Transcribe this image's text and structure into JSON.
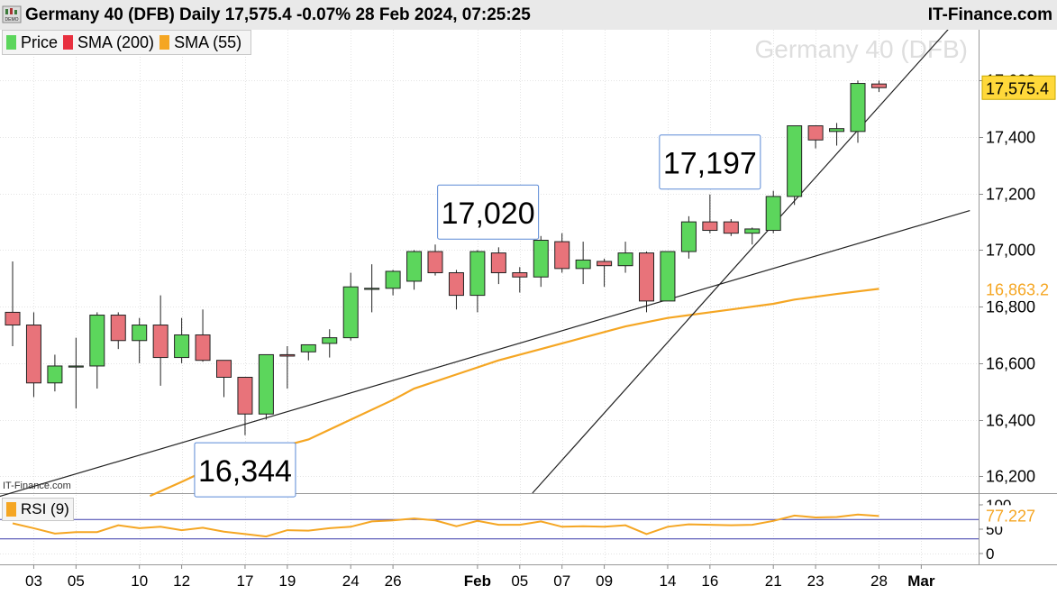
{
  "header": {
    "title": "Germany 40 (DFB) Daily 17,575.4 -0.07% 28 Feb 2024, 07:25:25",
    "brand": "IT-Finance.com",
    "demo_badge": "DEMO"
  },
  "legend": [
    {
      "label": "Price",
      "color": "#5cd65c"
    },
    {
      "label": "SMA (200)",
      "color": "#e8303f"
    },
    {
      "label": "SMA (55)",
      "color": "#f5a623"
    }
  ],
  "watermark": "Germany 40 (DFB)",
  "small_watermark": "IT-Finance.com",
  "colors": {
    "up": "#5cd65c",
    "down": "#e8737a",
    "sma55": "#f5a623",
    "trendline": "#222222",
    "rsi": "#f5a623",
    "rsi_level": "#3a3aaa"
  },
  "chart_data": {
    "type": "candlestick",
    "title": "Germany 40 (DFB) Daily",
    "x_tick_labels": [
      {
        "label": "03",
        "index": 1
      },
      {
        "label": "05",
        "index": 3
      },
      {
        "label": "10",
        "index": 6
      },
      {
        "label": "12",
        "index": 8
      },
      {
        "label": "17",
        "index": 11
      },
      {
        "label": "19",
        "index": 13
      },
      {
        "label": "24",
        "index": 16
      },
      {
        "label": "26",
        "index": 18
      },
      {
        "label": "Feb",
        "index": 22
      },
      {
        "label": "05",
        "index": 24
      },
      {
        "label": "07",
        "index": 26
      },
      {
        "label": "09",
        "index": 28
      },
      {
        "label": "14",
        "index": 31
      },
      {
        "label": "16",
        "index": 33
      },
      {
        "label": "21",
        "index": 36
      },
      {
        "label": "23",
        "index": 38
      },
      {
        "label": "28",
        "index": 41
      },
      {
        "label": "Mar",
        "index": 43
      }
    ],
    "y_ticks": [
      16200,
      16400,
      16600,
      16800,
      17000,
      17200,
      17400,
      17600
    ],
    "y_tick_labels": [
      "16,200",
      "16,400",
      "16,600",
      "16,800",
      "17,000",
      "17,200",
      "17,400",
      "17,600"
    ],
    "ylim": [
      16140,
      17780
    ],
    "candles": [
      {
        "o": 16780,
        "h": 16960,
        "l": 16660,
        "c": 16735
      },
      {
        "o": 16735,
        "h": 16780,
        "l": 16480,
        "c": 16530
      },
      {
        "o": 16530,
        "h": 16630,
        "l": 16500,
        "c": 16590
      },
      {
        "o": 16590,
        "h": 16690,
        "l": 16440,
        "c": 16590
      },
      {
        "o": 16590,
        "h": 16780,
        "l": 16510,
        "c": 16770
      },
      {
        "o": 16770,
        "h": 16780,
        "l": 16650,
        "c": 16680
      },
      {
        "o": 16680,
        "h": 16760,
        "l": 16600,
        "c": 16735
      },
      {
        "o": 16735,
        "h": 16840,
        "l": 16520,
        "c": 16620
      },
      {
        "o": 16620,
        "h": 16760,
        "l": 16600,
        "c": 16700
      },
      {
        "o": 16700,
        "h": 16790,
        "l": 16605,
        "c": 16610
      },
      {
        "o": 16610,
        "h": 16610,
        "l": 16480,
        "c": 16550
      },
      {
        "o": 16550,
        "h": 16550,
        "l": 16345,
        "c": 16420
      },
      {
        "o": 16420,
        "h": 16630,
        "l": 16400,
        "c": 16630
      },
      {
        "o": 16630,
        "h": 16660,
        "l": 16510,
        "c": 16625
      },
      {
        "o": 16640,
        "h": 16660,
        "l": 16610,
        "c": 16665
      },
      {
        "o": 16670,
        "h": 16720,
        "l": 16620,
        "c": 16690
      },
      {
        "o": 16690,
        "h": 16920,
        "l": 16680,
        "c": 16870
      },
      {
        "o": 16865,
        "h": 16950,
        "l": 16780,
        "c": 16865
      },
      {
        "o": 16865,
        "h": 16930,
        "l": 16840,
        "c": 16925
      },
      {
        "o": 16890,
        "h": 17000,
        "l": 16860,
        "c": 16995
      },
      {
        "o": 16995,
        "h": 17020,
        "l": 16910,
        "c": 16920
      },
      {
        "o": 16920,
        "h": 16930,
        "l": 16790,
        "c": 16840
      },
      {
        "o": 16840,
        "h": 17000,
        "l": 16780,
        "c": 16995
      },
      {
        "o": 16990,
        "h": 17010,
        "l": 16880,
        "c": 16920
      },
      {
        "o": 16920,
        "h": 16940,
        "l": 16850,
        "c": 16905
      },
      {
        "o": 16905,
        "h": 17050,
        "l": 16870,
        "c": 17035
      },
      {
        "o": 17030,
        "h": 17060,
        "l": 16920,
        "c": 16935
      },
      {
        "o": 16935,
        "h": 17030,
        "l": 16880,
        "c": 16965
      },
      {
        "o": 16960,
        "h": 16970,
        "l": 16870,
        "c": 16945
      },
      {
        "o": 16945,
        "h": 17030,
        "l": 16920,
        "c": 16990
      },
      {
        "o": 16990,
        "h": 16995,
        "l": 16780,
        "c": 16820
      },
      {
        "o": 16820,
        "h": 16995,
        "l": 16820,
        "c": 16995
      },
      {
        "o": 16995,
        "h": 17120,
        "l": 16970,
        "c": 17100
      },
      {
        "o": 17100,
        "h": 17197,
        "l": 17060,
        "c": 17070
      },
      {
        "o": 17100,
        "h": 17110,
        "l": 17050,
        "c": 17060
      },
      {
        "o": 17060,
        "h": 17080,
        "l": 17020,
        "c": 17075
      },
      {
        "o": 17070,
        "h": 17210,
        "l": 17060,
        "c": 17190
      },
      {
        "o": 17190,
        "h": 17440,
        "l": 17160,
        "c": 17440
      },
      {
        "o": 17440,
        "h": 17440,
        "l": 17360,
        "c": 17390
      },
      {
        "o": 17420,
        "h": 17450,
        "l": 17370,
        "c": 17430
      },
      {
        "o": 17420,
        "h": 17600,
        "l": 17380,
        "c": 17590
      },
      {
        "o": 17588,
        "h": 17600,
        "l": 17560,
        "c": 17575
      }
    ],
    "sma55": [
      {
        "i": 6.5,
        "v": 16130
      },
      {
        "i": 8,
        "v": 16180
      },
      {
        "i": 10,
        "v": 16250
      },
      {
        "i": 12,
        "v": 16290
      },
      {
        "i": 14,
        "v": 16330
      },
      {
        "i": 16,
        "v": 16400
      },
      {
        "i": 18,
        "v": 16470
      },
      {
        "i": 19,
        "v": 16510
      },
      {
        "i": 21,
        "v": 16560
      },
      {
        "i": 23,
        "v": 16610
      },
      {
        "i": 25,
        "v": 16650
      },
      {
        "i": 27,
        "v": 16690
      },
      {
        "i": 29,
        "v": 16730
      },
      {
        "i": 31,
        "v": 16760
      },
      {
        "i": 33,
        "v": 16780
      },
      {
        "i": 34,
        "v": 16790
      },
      {
        "i": 36,
        "v": 16810
      },
      {
        "i": 37,
        "v": 16825
      },
      {
        "i": 39,
        "v": 16845
      },
      {
        "i": 41,
        "v": 16863
      }
    ],
    "trendlines": [
      {
        "from": {
          "i": -1,
          "v": 16120
        },
        "to": {
          "i": 45.3,
          "v": 17140
        }
      },
      {
        "from": {
          "i": 24.6,
          "v": 16140
        },
        "to": {
          "i": 44.5,
          "v": 17800
        }
      }
    ],
    "annotations": [
      {
        "label": "16,344",
        "i": 11,
        "v": 16344,
        "position": "below"
      },
      {
        "label": "17,020",
        "i": 22.5,
        "v": 17020,
        "position": "above"
      },
      {
        "label": "17,197",
        "i": 33,
        "v": 17197,
        "position": "above"
      }
    ],
    "last_price_label": "17,575.4",
    "sma55_label": "16,863.2",
    "rsi": {
      "label": "RSI (9)",
      "value_label": "77.227",
      "ticks": [
        "100",
        "50",
        "0"
      ],
      "levels": [
        70,
        30
      ],
      "values": [
        62,
        52,
        41,
        44,
        44,
        58,
        52,
        55,
        48,
        53,
        45,
        40,
        35,
        48,
        47,
        52,
        55,
        66,
        68,
        72,
        68,
        56,
        67,
        59,
        59,
        66,
        55,
        56,
        55,
        58,
        40,
        55,
        60,
        59,
        58,
        59,
        67,
        78,
        74,
        75,
        80,
        77
      ]
    }
  }
}
